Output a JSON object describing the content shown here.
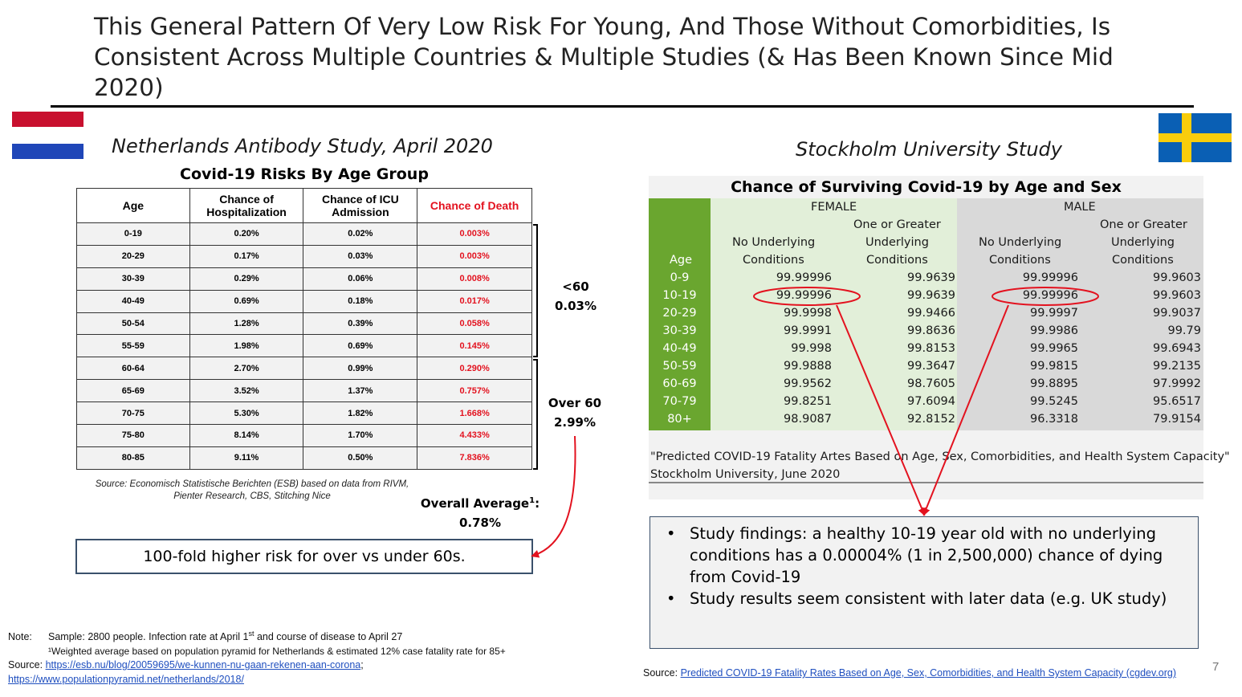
{
  "slide": {
    "title": "This General Pattern Of Very Low Risk For Young, And Those Without Comorbidities, Is Consistent Across Multiple Countries & Multiple Studies (& Has Been Known Since Mid 2020)",
    "page_number": "7"
  },
  "netherlands": {
    "heading": "Netherlands Antibody Study, April 2020",
    "table_title": "Covid-19 Risks By Age Group",
    "headers": [
      "Age",
      "Chance of Hospitalization",
      "Chance of ICU Admission",
      "Chance of Death"
    ],
    "rows": [
      [
        "0-19",
        "0.20%",
        "0.02%",
        "0.003%"
      ],
      [
        "20-29",
        "0.17%",
        "0.03%",
        "0.003%"
      ],
      [
        "30-39",
        "0.29%",
        "0.06%",
        "0.008%"
      ],
      [
        "40-49",
        "0.69%",
        "0.18%",
        "0.017%"
      ],
      [
        "50-54",
        "1.28%",
        "0.39%",
        "0.058%"
      ],
      [
        "55-59",
        "1.98%",
        "0.69%",
        "0.145%"
      ],
      [
        "60-64",
        "2.70%",
        "0.99%",
        "0.290%"
      ],
      [
        "65-69",
        "3.52%",
        "1.37%",
        "0.757%"
      ],
      [
        "70-75",
        "5.30%",
        "1.82%",
        "1.668%"
      ],
      [
        "75-80",
        "8.14%",
        "1.70%",
        "4.433%"
      ],
      [
        "80-85",
        "9.11%",
        "0.50%",
        "7.836%"
      ]
    ],
    "under60_label": "<60",
    "under60_value": "0.03%",
    "over60_label": "Over 60",
    "over60_value": "2.99%",
    "source_line1": "Source: Economisch Statistische Berichten (ESB) based on data from RIVM,",
    "source_line2": "Pienter Research, CBS, Stitching Nice",
    "overall_label": "Overall Average",
    "overall_sup": "1",
    "overall_colon": ":",
    "overall_value": "0.78%",
    "risk_box": "100-fold higher risk for over vs under 60s.",
    "colors": {
      "death": "#e3121f",
      "flag_red": "#c8102e",
      "flag_blue": "#1f46b8",
      "arrow": "#e3121f"
    }
  },
  "stockholm": {
    "heading": "Stockholm University Study",
    "table_title": "Chance of Surviving Covid-19 by Age and Sex",
    "female_label": "FEMALE",
    "male_label": "MALE",
    "col_age": "Age",
    "col_no_underlying_1": "No Underlying",
    "col_no_underlying_2": "Conditions",
    "col_one_1": "One or Greater",
    "col_one_2": "Underlying",
    "col_one_3": "Conditions",
    "rows": [
      [
        "0-9",
        "99.99996",
        "99.9639",
        "99.99996",
        "99.9603"
      ],
      [
        "10-19",
        "99.99996",
        "99.9639",
        "99.99996",
        "99.9603"
      ],
      [
        "20-29",
        "99.9998",
        "99.9466",
        "99.9997",
        "99.9037"
      ],
      [
        "30-39",
        "99.9991",
        "99.8636",
        "99.9986",
        "99.79"
      ],
      [
        "40-49",
        "99.998",
        "99.8153",
        "99.9965",
        "99.6943"
      ],
      [
        "50-59",
        "99.9888",
        "99.3647",
        "99.9815",
        "99.2135"
      ],
      [
        "60-69",
        "99.9562",
        "98.7605",
        "99.8895",
        "97.9992"
      ],
      [
        "70-79",
        "99.8251",
        "97.6094",
        "99.5245",
        "95.6517"
      ],
      [
        "80+",
        "98.9087",
        "92.8152",
        "96.3318",
        "79.9154"
      ]
    ],
    "citation_line1": "\"Predicted COVID-19 Fatality Artes Based on Age, Sex, Comorbidities, and Health System Capacity\"",
    "citation_line2": "Stockholm University, June 2020",
    "findings": [
      "Study findings: a healthy 10-19 year old with no underlying conditions has a 0.00004% (1 in 2,500,000) chance of dying from Covid-19",
      "Study results seem consistent with later data (e.g. UK study)"
    ],
    "bullet": "•",
    "colors": {
      "age_col": "#6aa62f",
      "female_bg": "#e2efd9",
      "male_bg": "#d9d9d9",
      "flag_blue": "#0a5fb4",
      "flag_yellow": "#f9cd0c"
    }
  },
  "notes": {
    "note_label": "Note:",
    "note_sample_pre": "Sample: 2800 people. Infection rate at April 1",
    "note_sample_sup": "st",
    "note_sample_post": " and course of disease to April 27",
    "note_weighted": "¹Weighted average based on population pyramid for Netherlands & estimated 12% case fatality rate for 85+",
    "source_label": "Source:",
    "source_link1": "https://esb.nu/blog/20059695/we-kunnen-nu-gaan-rekenen-aan-corona",
    "source_sep": ";",
    "source_link2": "https://www.populationpyramid.net/netherlands/2018/",
    "se_source_label": "Source:",
    "se_source_link": "Predicted COVID-19 Fatality Rates Based on Age, Sex, Comorbidities, and Health System Capacity (cgdev.org)"
  }
}
